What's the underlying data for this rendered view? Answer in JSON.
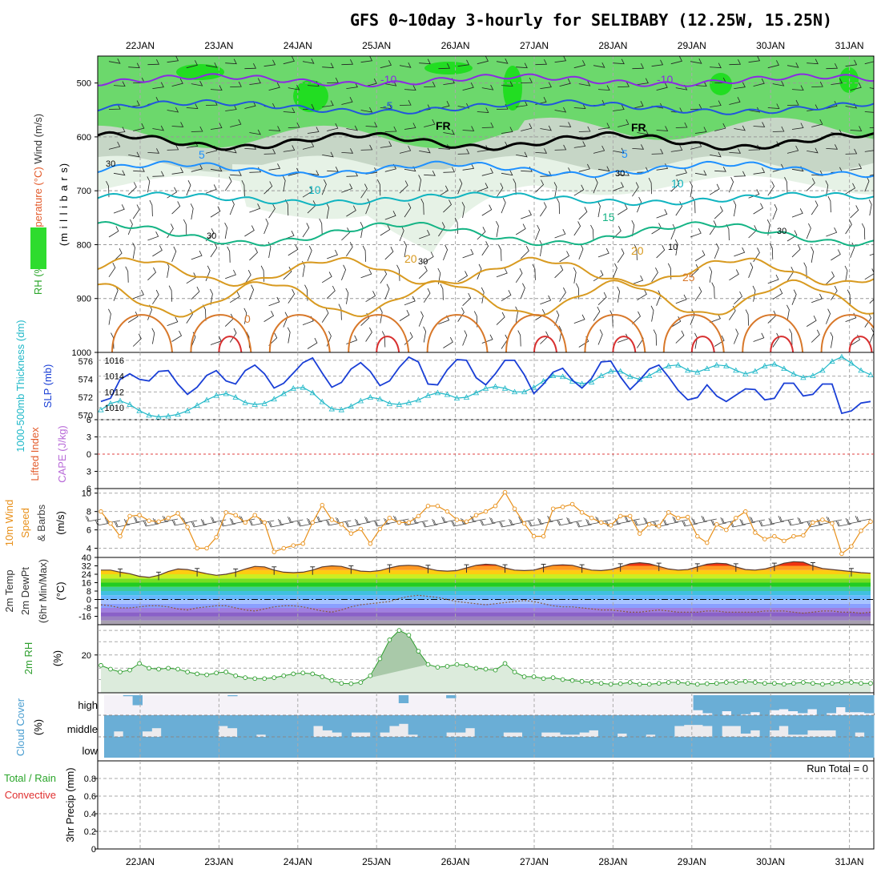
{
  "title": "GFS 0~10day 3-hourly for SELIBABY (12.25W, 15.25N)",
  "days": [
    "22JAN",
    "23JAN",
    "24JAN",
    "25JAN",
    "26JAN",
    "27JAN",
    "28JAN",
    "29JAN",
    "30JAN",
    "31JAN"
  ],
  "colors": {
    "rh_light": "#e6f2e6",
    "rh_mid": "#c6d6c6",
    "rh_green": "#6cd86c",
    "rh_bright": "#22dd22",
    "t_m10": "#8a2be2",
    "t_m5": "#2255dd",
    "t_fr": "#000000",
    "t_5": "#1e90ff",
    "t_10": "#10b4c0",
    "t_15": "#15b485",
    "t_20": "#d89a20",
    "t_25": "#d8782a",
    "t_30": "#d83030",
    "slp": "#1a3fd6",
    "thk": "#20b8c8",
    "wind10": "#e8901a",
    "rh2m": "#2e9e2e",
    "cloud": "#6aaed6"
  },
  "chart_data": [
    {
      "id": "upper-air",
      "type": "contour",
      "title": "Wind (m/s) / Temperature (°C) / RH (%) cross-section",
      "ylabel_parts": [
        "RH (%)",
        "Temperature (°C)",
        "Wind (m/s)",
        "(millibars)"
      ],
      "ylabel_text": "(m i l l i b a r s)",
      "rh_legend": "RH (%)",
      "yticks": [
        "500",
        "600",
        "700",
        "800",
        "900",
        "1000"
      ],
      "ylim": [
        450,
        1000
      ],
      "isotherm_labels": [
        "-10",
        "-10",
        "-5",
        "FR",
        "FR",
        "5",
        "5",
        "10",
        "10",
        "15",
        "20",
        "20",
        "25",
        "0"
      ],
      "rh_labels": [
        "30",
        "30",
        "30",
        "30",
        "10",
        "30"
      ]
    },
    {
      "id": "slp-thickness",
      "type": "line",
      "ylabel_left": "1000-500mb Thickness (dm)",
      "ylabel_right": "SLP (mb)",
      "yticks_left": [
        "576",
        "574",
        "572",
        "570"
      ],
      "yticks_right": [
        "1016",
        "1014",
        "1012",
        "1010"
      ],
      "series": [
        {
          "name": "SLP (mb)",
          "ylim": [
            1008.5,
            1017
          ],
          "values": [
            1010.8,
            1011.2,
            1013.6,
            1014.3,
            1013.6,
            1013.4,
            1014.6,
            1014.7,
            1013.0,
            1011.7,
            1012.6,
            1014.1,
            1014.7,
            1013.4,
            1013.0,
            1014.7,
            1015.4,
            1014.3,
            1012.5,
            1013.1,
            1014.4,
            1015.7,
            1016.3,
            1014.4,
            1012.6,
            1013.2,
            1014.9,
            1015.7,
            1014.6,
            1012.8,
            1013.4,
            1015.1,
            1016.4,
            1015.8,
            1013.0,
            1012.9,
            1014.8,
            1016.1,
            1016.0,
            1013.8,
            1012.9,
            1014.3,
            1016.0,
            1016.0,
            1014.2,
            1011.8,
            1013.0,
            1014.5,
            1015.0,
            1013.5,
            1012.5,
            1013.7,
            1015.8,
            1015.9,
            1013.9,
            1012.3,
            1013.5,
            1014.9,
            1015.4,
            1013.9,
            1012.2,
            1011.0,
            1011.3,
            1012.9,
            1011.5,
            1010.8,
            1011.6,
            1012.4,
            1012.3,
            1011.0,
            1011.2,
            1013.1,
            1013.1,
            1011.5,
            1011.7,
            1013.0,
            1013.0,
            1009.3,
            1009.6,
            1010.6,
            1010.8
          ]
        },
        {
          "name": "1000-500mb Thickness (dm)",
          "ylim": [
            569.5,
            577
          ],
          "values": [
            570.6,
            571.3,
            571.6,
            571.2,
            570.5,
            570.0,
            569.8,
            569.9,
            570.1,
            570.5,
            571.1,
            571.7,
            572.2,
            572.4,
            572.0,
            571.4,
            571.2,
            571.3,
            571.8,
            572.4,
            573.0,
            573.1,
            572.5,
            571.5,
            570.7,
            570.6,
            571.0,
            571.6,
            572.0,
            571.8,
            571.3,
            571.2,
            571.4,
            571.7,
            572.2,
            572.5,
            572.3,
            571.9,
            572.0,
            572.5,
            573.0,
            573.2,
            573.0,
            572.6,
            572.6,
            573.1,
            573.8,
            574.4,
            574.3,
            573.8,
            573.5,
            573.7,
            574.4,
            574.9,
            574.9,
            574.3,
            574.0,
            574.4,
            575.0,
            575.5,
            575.6,
            575.0,
            574.8,
            575.2,
            575.6,
            575.5,
            575.0,
            574.6,
            574.9,
            575.5,
            575.7,
            575.2,
            574.6,
            574.2,
            574.4,
            575.0,
            576.0,
            576.5,
            575.8,
            575.0,
            574.5
          ]
        }
      ]
    },
    {
      "id": "instability",
      "type": "line",
      "ylabel_parts": [
        "Lifted Index",
        "CAPE (J/kg)"
      ],
      "yticks": [
        "6",
        "3",
        "0",
        "3",
        "6"
      ],
      "ylim": [
        -6,
        6
      ],
      "series": [
        {
          "name": "Lifted Index",
          "values": []
        },
        {
          "name": "CAPE (J/kg)",
          "values": []
        }
      ]
    },
    {
      "id": "wind10m",
      "type": "line",
      "ylabel_parts": [
        "10m Wind",
        "Speed",
        "& Barbs",
        "(m/s)"
      ],
      "yticks": [
        "10",
        "8",
        "6",
        "4"
      ],
      "ylim": [
        3,
        10.5
      ],
      "series": [
        {
          "name": "10m Wind Speed (m/s)",
          "values": [
            8.0,
            6.7,
            5.3,
            7.5,
            7.6,
            7.0,
            6.9,
            7.3,
            7.8,
            6.3,
            4.0,
            4.0,
            5.2,
            7.9,
            7.6,
            6.8,
            7.6,
            6.8,
            3.6,
            4.0,
            4.3,
            4.5,
            6.8,
            8.7,
            7.1,
            6.6,
            5.6,
            6.1,
            4.5,
            6.1,
            7.3,
            6.8,
            6.8,
            7.5,
            8.6,
            8.6,
            8.0,
            7.1,
            6.9,
            7.6,
            8.0,
            8.6,
            10.1,
            8.3,
            6.7,
            5.3,
            5.3,
            8.3,
            8.5,
            8.8,
            7.9,
            7.3,
            6.8,
            6.5,
            7.5,
            7.5,
            5.6,
            6.6,
            6.4,
            7.9,
            7.3,
            7.4,
            5.3,
            4.6,
            6.6,
            6.0,
            7.3,
            8.0,
            5.7,
            5.0,
            5.3,
            4.8,
            5.3,
            5.4,
            6.8,
            7.1,
            6.7,
            3.4,
            4.2,
            5.9,
            6.9
          ]
        }
      ]
    },
    {
      "id": "temp2m",
      "type": "area",
      "ylabel_parts": [
        "2m Temp",
        "2m DewPt",
        "(6hr Min/Max)",
        "(°C)"
      ],
      "yticks": [
        "40",
        "32",
        "24",
        "16",
        "8",
        "0",
        "-8",
        "-16"
      ],
      "ylim": [
        -24,
        40
      ],
      "series": [
        {
          "name": "2m Temp (°C)",
          "values": [
            28.0,
            28.0,
            26.0,
            24.5,
            22.0,
            21.0,
            23.0,
            26.6,
            29.0,
            28.5,
            26.5,
            24.5,
            23.0,
            24.0,
            26.0,
            29.0,
            31.5,
            31.0,
            28.0,
            26.0,
            25.5,
            26.0,
            28.0,
            31.0,
            32.0,
            31.5,
            29.0,
            27.0,
            26.5,
            27.5,
            30.0,
            32.0,
            32.5,
            32.0,
            29.5,
            27.5,
            27.0,
            27.5,
            30.0,
            32.5,
            33.5,
            33.0,
            30.0,
            28.0,
            27.5,
            28.0,
            30.5,
            32.5,
            33.0,
            32.5,
            30.0,
            28.0,
            27.5,
            28.5,
            31.0,
            34.0,
            35.0,
            34.0,
            31.5,
            29.0,
            28.0,
            28.5,
            31.0,
            33.5,
            34.5,
            34.0,
            31.0,
            28.5,
            28.0,
            29.0,
            31.5,
            34.5,
            36.0,
            35.5,
            32.0,
            29.5,
            28.5,
            27.5,
            26.5,
            25.5,
            25.0
          ]
        },
        {
          "name": "2m DewPt (°C)",
          "values": [
            -5.0,
            -6.0,
            -8.0,
            -8.0,
            -7.0,
            -6.0,
            -6.0,
            -7.0,
            -9.0,
            -10.0,
            -8.0,
            -7.0,
            -6.0,
            -6.0,
            -8.0,
            -10.0,
            -11.0,
            -9.0,
            -7.0,
            -6.0,
            -6.0,
            -7.0,
            -9.0,
            -11.0,
            -12.0,
            -10.0,
            -7.0,
            -5.0,
            -4.0,
            -3.0,
            -2.0,
            1.0,
            3.0,
            4.0,
            3.0,
            2.0,
            0.0,
            -2.0,
            -3.0,
            -4.0,
            -5.0,
            -4.0,
            -3.0,
            -2.0,
            -1.0,
            -2.0,
            -4.0,
            -6.0,
            -7.0,
            -7.0,
            -8.0,
            -9.0,
            -10.0,
            -10.0,
            -11.0,
            -12.0,
            -12.0,
            -11.0,
            -10.0,
            -11.0,
            -12.0,
            -12.0,
            -12.0,
            -11.0,
            -11.0,
            -12.0,
            -12.0,
            -12.0,
            -12.0,
            -11.0,
            -11.0,
            -11.0,
            -12.0,
            -13.0,
            -12.0,
            -11.0,
            -11.0,
            -12.0,
            -12.0,
            -13.0,
            -12.0
          ]
        }
      ]
    },
    {
      "id": "rh2m",
      "type": "area",
      "ylabel_parts": [
        "2m RH",
        "(%)"
      ],
      "yticks": [
        "20"
      ],
      "ylim": [
        0,
        36
      ],
      "series": [
        {
          "name": "2m RH (%)",
          "values": [
            14.5,
            12.5,
            11.0,
            12.0,
            15.5,
            13.0,
            12.5,
            13.0,
            12.5,
            11.0,
            10.0,
            9.5,
            10.5,
            11.0,
            9.0,
            8.0,
            7.5,
            7.5,
            8.0,
            9.0,
            10.0,
            10.5,
            10.0,
            8.5,
            6.5,
            5.0,
            4.8,
            5.5,
            9.0,
            18.0,
            28.0,
            33.0,
            30.5,
            22.0,
            15.0,
            13.5,
            14.0,
            15.0,
            14.5,
            13.0,
            12.5,
            12.0,
            15.5,
            11.0,
            8.5,
            8.5,
            7.5,
            8.0,
            7.0,
            6.5,
            6.0,
            5.5,
            5.0,
            4.5,
            4.8,
            5.5,
            4.5,
            4.5,
            5.0,
            5.5,
            5.5,
            5.0,
            4.5,
            4.8,
            5.0,
            5.5,
            5.5,
            6.0,
            5.5,
            5.0,
            5.0,
            4.5,
            5.0,
            5.5,
            5.0,
            4.5,
            5.0,
            5.5,
            5.5,
            5.0,
            5.0
          ]
        }
      ]
    },
    {
      "id": "cloud",
      "type": "bar",
      "ylabel_parts": [
        "Cloud Cover",
        "(%)"
      ],
      "levels": [
        "high",
        "middle",
        "low"
      ],
      "series": [
        {
          "name": "high",
          "values": [
            0,
            0,
            5,
            50,
            0,
            0,
            0,
            0,
            0,
            0,
            0,
            0,
            0,
            5,
            0,
            0,
            0,
            0,
            0,
            0,
            0,
            0,
            0,
            0,
            0,
            0,
            0,
            0,
            0,
            0,
            0,
            40,
            0,
            0,
            0,
            0,
            15,
            0,
            0,
            0,
            0,
            0,
            0,
            0,
            0,
            0,
            0,
            0,
            0,
            0,
            0,
            0,
            0,
            0,
            0,
            0,
            0,
            0,
            0,
            0,
            0,
            0,
            75,
            90,
            100,
            80,
            100,
            95,
            85,
            100,
            75,
            70,
            80,
            90,
            70,
            100,
            90,
            60,
            85,
            85,
            90
          ]
        },
        {
          "name": "middle",
          "values": [
            100,
            75,
            100,
            100,
            75,
            60,
            100,
            100,
            100,
            100,
            100,
            100,
            50,
            60,
            100,
            100,
            90,
            100,
            100,
            100,
            100,
            100,
            50,
            70,
            80,
            100,
            80,
            80,
            100,
            80,
            50,
            40,
            90,
            100,
            100,
            100,
            80,
            80,
            60,
            100,
            100,
            100,
            80,
            80,
            100,
            100,
            80,
            80,
            90,
            90,
            80,
            70,
            100,
            100,
            85,
            100,
            100,
            90,
            100,
            100,
            50,
            45,
            45,
            50,
            100,
            50,
            50,
            85,
            70,
            100,
            70,
            50,
            90,
            90,
            70,
            70,
            70,
            100,
            100,
            80,
            100
          ]
        },
        {
          "name": "low",
          "values": [
            100,
            100,
            100,
            100,
            100,
            100,
            100,
            100,
            100,
            100,
            100,
            100,
            100,
            100,
            100,
            100,
            100,
            100,
            100,
            100,
            100,
            100,
            100,
            100,
            100,
            100,
            100,
            100,
            100,
            100,
            100,
            100,
            100,
            100,
            100,
            100,
            100,
            100,
            100,
            100,
            100,
            100,
            100,
            100,
            100,
            100,
            100,
            100,
            100,
            100,
            100,
            100,
            100,
            100,
            100,
            100,
            100,
            100,
            100,
            100,
            100,
            100,
            100,
            100,
            100,
            100,
            100,
            100,
            100,
            100,
            100,
            100,
            100,
            100,
            100,
            100,
            100,
            100,
            100,
            100,
            100
          ]
        }
      ]
    },
    {
      "id": "precip",
      "type": "bar",
      "ylabel_parts": [
        "Total / Rain",
        "Convective",
        "3hr Precip (mm)"
      ],
      "yticks": [
        "0.8",
        "0.6",
        "0.4",
        "0.2",
        "0"
      ],
      "ylim": [
        0,
        1
      ],
      "run_total": "Run Total = 0",
      "series": [
        {
          "name": "3hr Precip (mm)",
          "values": [
            0,
            0,
            0,
            0,
            0,
            0,
            0,
            0,
            0,
            0,
            0,
            0,
            0,
            0,
            0,
            0,
            0,
            0,
            0,
            0,
            0,
            0,
            0,
            0,
            0,
            0,
            0,
            0,
            0,
            0,
            0,
            0,
            0,
            0,
            0,
            0,
            0,
            0,
            0,
            0,
            0,
            0,
            0,
            0,
            0,
            0,
            0,
            0,
            0,
            0,
            0,
            0,
            0,
            0,
            0,
            0,
            0,
            0,
            0,
            0,
            0,
            0,
            0,
            0,
            0,
            0,
            0,
            0,
            0,
            0,
            0,
            0,
            0,
            0,
            0,
            0,
            0,
            0,
            0,
            0,
            0
          ]
        }
      ]
    }
  ]
}
